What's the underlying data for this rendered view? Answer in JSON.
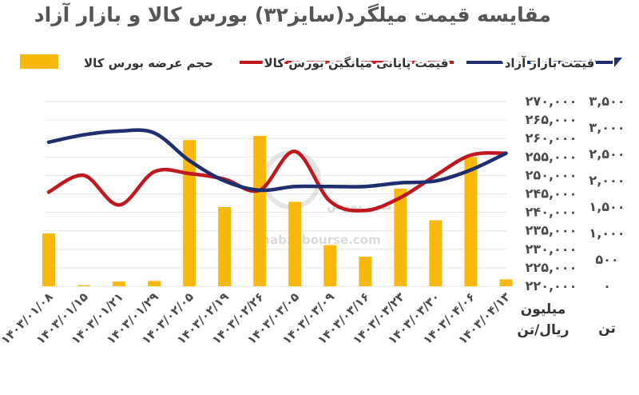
{
  "chart_data": {
    "type": "bar+line",
    "title": "مقایسه قیمت میلگرد(سایز۳۲) بورس کالا و بازار آزاد",
    "categories": [
      "۱۴۰۳/۰۱/۰۸",
      "۱۴۰۳/۰۱/۱۵",
      "۱۴۰۳/۰۱/۲۱",
      "۱۴۰۳/۰۱/۲۹",
      "۱۴۰۳/۰۲/۰۵",
      "۱۴۰۳/۰۲/۱۹",
      "۱۴۰۳/۰۲/۲۶",
      "۱۴۰۳/۰۳/۰۵",
      "۱۴۰۳/۰۳/۰۹",
      "۱۴۰۳/۰۳/۱۶",
      "۱۴۰۳/۰۳/۲۳",
      "۱۴۰۳/۰۳/۳۰",
      "۱۴۰۳/۰۴/۰۶",
      "۱۴۰۳/۰۴/۱۳"
    ],
    "series": [
      {
        "name": "حجم عرضه بورس کالا",
        "kind": "bar",
        "axis": "tons",
        "color": "#F7B80B",
        "values": [
          1000,
          20,
          90,
          100,
          2770,
          1500,
          2850,
          1600,
          780,
          560,
          1850,
          1250,
          2450,
          130
        ]
      },
      {
        "name": "قیمت پایانی میانگین بورس کالا",
        "kind": "line",
        "axis": "price",
        "color": "#C0181E",
        "values": [
          245500,
          250000,
          242000,
          251000,
          250500,
          249000,
          246000,
          256500,
          243000,
          240500,
          244000,
          250000,
          255500,
          256000
        ]
      },
      {
        "name": "قیمت بازار آزاد",
        "kind": "line",
        "axis": "price",
        "color": "#1F2E6E",
        "values": [
          259000,
          261000,
          262000,
          261500,
          254000,
          248500,
          246000,
          247000,
          247000,
          247000,
          248000,
          248500,
          251500,
          256000
        ]
      }
    ],
    "axes": {
      "tons": {
        "label": "تن",
        "ticks": [
          "۳,۵۰۰",
          "۳,۰۰۰",
          "۲,۵۰۰",
          "۲,۰۰۰",
          "۱,۵۰۰",
          "۱,۰۰۰",
          "۵۰۰",
          "۰"
        ],
        "range": [
          0,
          3500
        ]
      },
      "price": {
        "label_line1": "میلیون",
        "label_line2": "ریال/تن",
        "ticks": [
          "۲۷۰,۰۰۰",
          "۲۶۵,۰۰۰",
          "۲۶۰,۰۰۰",
          "۲۵۵,۰۰۰",
          "۲۵۰,۰۰۰",
          "۲۴۵,۰۰۰",
          "۲۴۰,۰۰۰",
          "۲۳۵,۰۰۰",
          "۲۳۰,۰۰۰",
          "۲۲۵,۰۰۰",
          "۲۲۰,۰۰۰"
        ],
        "range": [
          220000,
          270000
        ]
      }
    },
    "grid": true,
    "legend_position": "top"
  },
  "watermark": {
    "url": "nabzebourse.com",
    "logo_text": "نبض بورس"
  }
}
